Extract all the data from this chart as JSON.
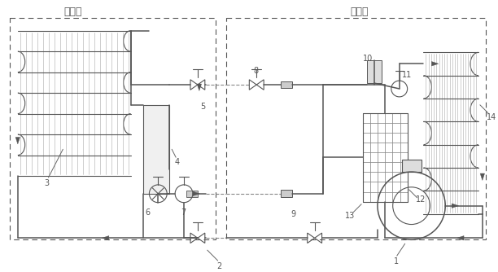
{
  "title_outdoor": "室外机",
  "title_indoor": "室内机",
  "lc": "#555555",
  "dc": "#888888",
  "figsize": [
    6.12,
    3.34
  ],
  "dpi": 100
}
